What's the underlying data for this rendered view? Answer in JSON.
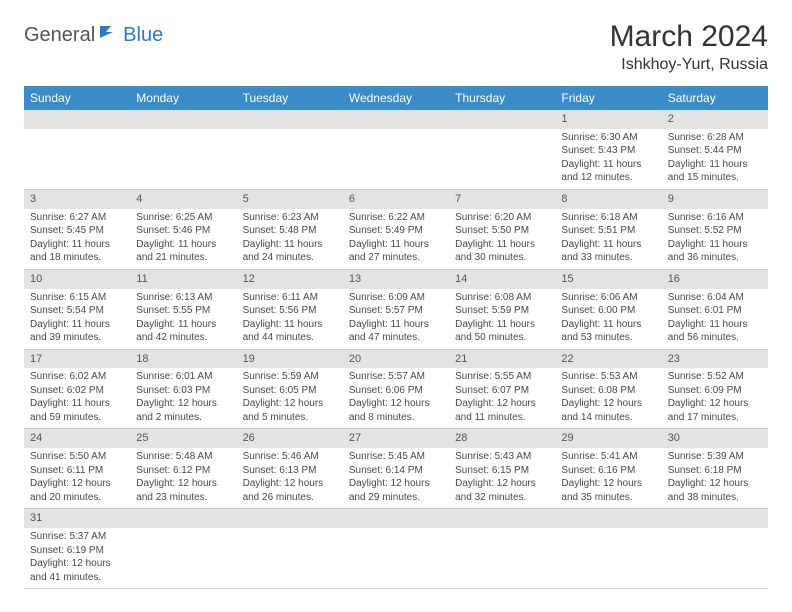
{
  "logo": {
    "general": "General",
    "blue": "Blue"
  },
  "title": "March 2024",
  "location": "Ishkhoy-Yurt, Russia",
  "weekdays": [
    "Sunday",
    "Monday",
    "Tuesday",
    "Wednesday",
    "Thursday",
    "Friday",
    "Saturday"
  ],
  "colors": {
    "header_bg": "#3b8bc8",
    "header_text": "#ffffff",
    "daynum_bg": "#e3e3e3",
    "border": "#cfcfcf",
    "logo_blue": "#2f7bbf"
  },
  "weeks": [
    [
      null,
      null,
      null,
      null,
      null,
      {
        "n": "1",
        "sr": "Sunrise: 6:30 AM",
        "ss": "Sunset: 5:43 PM",
        "d1": "Daylight: 11 hours",
        "d2": "and 12 minutes."
      },
      {
        "n": "2",
        "sr": "Sunrise: 6:28 AM",
        "ss": "Sunset: 5:44 PM",
        "d1": "Daylight: 11 hours",
        "d2": "and 15 minutes."
      }
    ],
    [
      {
        "n": "3",
        "sr": "Sunrise: 6:27 AM",
        "ss": "Sunset: 5:45 PM",
        "d1": "Daylight: 11 hours",
        "d2": "and 18 minutes."
      },
      {
        "n": "4",
        "sr": "Sunrise: 6:25 AM",
        "ss": "Sunset: 5:46 PM",
        "d1": "Daylight: 11 hours",
        "d2": "and 21 minutes."
      },
      {
        "n": "5",
        "sr": "Sunrise: 6:23 AM",
        "ss": "Sunset: 5:48 PM",
        "d1": "Daylight: 11 hours",
        "d2": "and 24 minutes."
      },
      {
        "n": "6",
        "sr": "Sunrise: 6:22 AM",
        "ss": "Sunset: 5:49 PM",
        "d1": "Daylight: 11 hours",
        "d2": "and 27 minutes."
      },
      {
        "n": "7",
        "sr": "Sunrise: 6:20 AM",
        "ss": "Sunset: 5:50 PM",
        "d1": "Daylight: 11 hours",
        "d2": "and 30 minutes."
      },
      {
        "n": "8",
        "sr": "Sunrise: 6:18 AM",
        "ss": "Sunset: 5:51 PM",
        "d1": "Daylight: 11 hours",
        "d2": "and 33 minutes."
      },
      {
        "n": "9",
        "sr": "Sunrise: 6:16 AM",
        "ss": "Sunset: 5:52 PM",
        "d1": "Daylight: 11 hours",
        "d2": "and 36 minutes."
      }
    ],
    [
      {
        "n": "10",
        "sr": "Sunrise: 6:15 AM",
        "ss": "Sunset: 5:54 PM",
        "d1": "Daylight: 11 hours",
        "d2": "and 39 minutes."
      },
      {
        "n": "11",
        "sr": "Sunrise: 6:13 AM",
        "ss": "Sunset: 5:55 PM",
        "d1": "Daylight: 11 hours",
        "d2": "and 42 minutes."
      },
      {
        "n": "12",
        "sr": "Sunrise: 6:11 AM",
        "ss": "Sunset: 5:56 PM",
        "d1": "Daylight: 11 hours",
        "d2": "and 44 minutes."
      },
      {
        "n": "13",
        "sr": "Sunrise: 6:09 AM",
        "ss": "Sunset: 5:57 PM",
        "d1": "Daylight: 11 hours",
        "d2": "and 47 minutes."
      },
      {
        "n": "14",
        "sr": "Sunrise: 6:08 AM",
        "ss": "Sunset: 5:59 PM",
        "d1": "Daylight: 11 hours",
        "d2": "and 50 minutes."
      },
      {
        "n": "15",
        "sr": "Sunrise: 6:06 AM",
        "ss": "Sunset: 6:00 PM",
        "d1": "Daylight: 11 hours",
        "d2": "and 53 minutes."
      },
      {
        "n": "16",
        "sr": "Sunrise: 6:04 AM",
        "ss": "Sunset: 6:01 PM",
        "d1": "Daylight: 11 hours",
        "d2": "and 56 minutes."
      }
    ],
    [
      {
        "n": "17",
        "sr": "Sunrise: 6:02 AM",
        "ss": "Sunset: 6:02 PM",
        "d1": "Daylight: 11 hours",
        "d2": "and 59 minutes."
      },
      {
        "n": "18",
        "sr": "Sunrise: 6:01 AM",
        "ss": "Sunset: 6:03 PM",
        "d1": "Daylight: 12 hours",
        "d2": "and 2 minutes."
      },
      {
        "n": "19",
        "sr": "Sunrise: 5:59 AM",
        "ss": "Sunset: 6:05 PM",
        "d1": "Daylight: 12 hours",
        "d2": "and 5 minutes."
      },
      {
        "n": "20",
        "sr": "Sunrise: 5:57 AM",
        "ss": "Sunset: 6:06 PM",
        "d1": "Daylight: 12 hours",
        "d2": "and 8 minutes."
      },
      {
        "n": "21",
        "sr": "Sunrise: 5:55 AM",
        "ss": "Sunset: 6:07 PM",
        "d1": "Daylight: 12 hours",
        "d2": "and 11 minutes."
      },
      {
        "n": "22",
        "sr": "Sunrise: 5:53 AM",
        "ss": "Sunset: 6:08 PM",
        "d1": "Daylight: 12 hours",
        "d2": "and 14 minutes."
      },
      {
        "n": "23",
        "sr": "Sunrise: 5:52 AM",
        "ss": "Sunset: 6:09 PM",
        "d1": "Daylight: 12 hours",
        "d2": "and 17 minutes."
      }
    ],
    [
      {
        "n": "24",
        "sr": "Sunrise: 5:50 AM",
        "ss": "Sunset: 6:11 PM",
        "d1": "Daylight: 12 hours",
        "d2": "and 20 minutes."
      },
      {
        "n": "25",
        "sr": "Sunrise: 5:48 AM",
        "ss": "Sunset: 6:12 PM",
        "d1": "Daylight: 12 hours",
        "d2": "and 23 minutes."
      },
      {
        "n": "26",
        "sr": "Sunrise: 5:46 AM",
        "ss": "Sunset: 6:13 PM",
        "d1": "Daylight: 12 hours",
        "d2": "and 26 minutes."
      },
      {
        "n": "27",
        "sr": "Sunrise: 5:45 AM",
        "ss": "Sunset: 6:14 PM",
        "d1": "Daylight: 12 hours",
        "d2": "and 29 minutes."
      },
      {
        "n": "28",
        "sr": "Sunrise: 5:43 AM",
        "ss": "Sunset: 6:15 PM",
        "d1": "Daylight: 12 hours",
        "d2": "and 32 minutes."
      },
      {
        "n": "29",
        "sr": "Sunrise: 5:41 AM",
        "ss": "Sunset: 6:16 PM",
        "d1": "Daylight: 12 hours",
        "d2": "and 35 minutes."
      },
      {
        "n": "30",
        "sr": "Sunrise: 5:39 AM",
        "ss": "Sunset: 6:18 PM",
        "d1": "Daylight: 12 hours",
        "d2": "and 38 minutes."
      }
    ],
    [
      {
        "n": "31",
        "sr": "Sunrise: 5:37 AM",
        "ss": "Sunset: 6:19 PM",
        "d1": "Daylight: 12 hours",
        "d2": "and 41 minutes."
      },
      null,
      null,
      null,
      null,
      null,
      null
    ]
  ]
}
